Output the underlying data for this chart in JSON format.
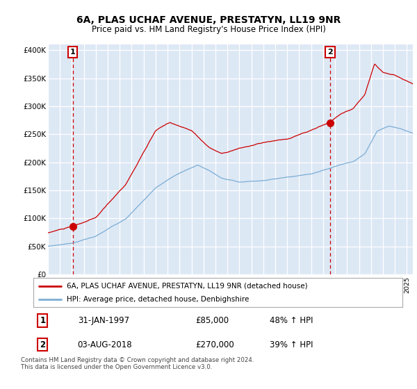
{
  "title": "6A, PLAS UCHAF AVENUE, PRESTATYN, LL19 9NR",
  "subtitle": "Price paid vs. HM Land Registry's House Price Index (HPI)",
  "ylim": [
    0,
    410000
  ],
  "yticks": [
    0,
    50000,
    100000,
    150000,
    200000,
    250000,
    300000,
    350000,
    400000
  ],
  "ytick_labels": [
    "£0",
    "£50K",
    "£100K",
    "£150K",
    "£200K",
    "£250K",
    "£300K",
    "£350K",
    "£400K"
  ],
  "bg_color": "#dde8f5",
  "grid_color": "#ffffff",
  "sale1_date": 1997.08,
  "sale1_price": 85000,
  "sale1_label": "1",
  "sale2_date": 2018.58,
  "sale2_price": 270000,
  "sale2_label": "2",
  "legend_line1": "6A, PLAS UCHAF AVENUE, PRESTATYN, LL19 9NR (detached house)",
  "legend_line2": "HPI: Average price, detached house, Denbighshire",
  "table_row1": [
    "1",
    "31-JAN-1997",
    "£85,000",
    "48% ↑ HPI"
  ],
  "table_row2": [
    "2",
    "03-AUG-2018",
    "£270,000",
    "39% ↑ HPI"
  ],
  "footnote": "Contains HM Land Registry data © Crown copyright and database right 2024.\nThis data is licensed under the Open Government Licence v3.0.",
  "hpi_color": "#7aadd4",
  "price_color": "#cc0000",
  "sale_dot_color": "#cc0000",
  "vline_color": "#cc0000",
  "xlim_start": 1995,
  "xlim_end": 2025.5
}
